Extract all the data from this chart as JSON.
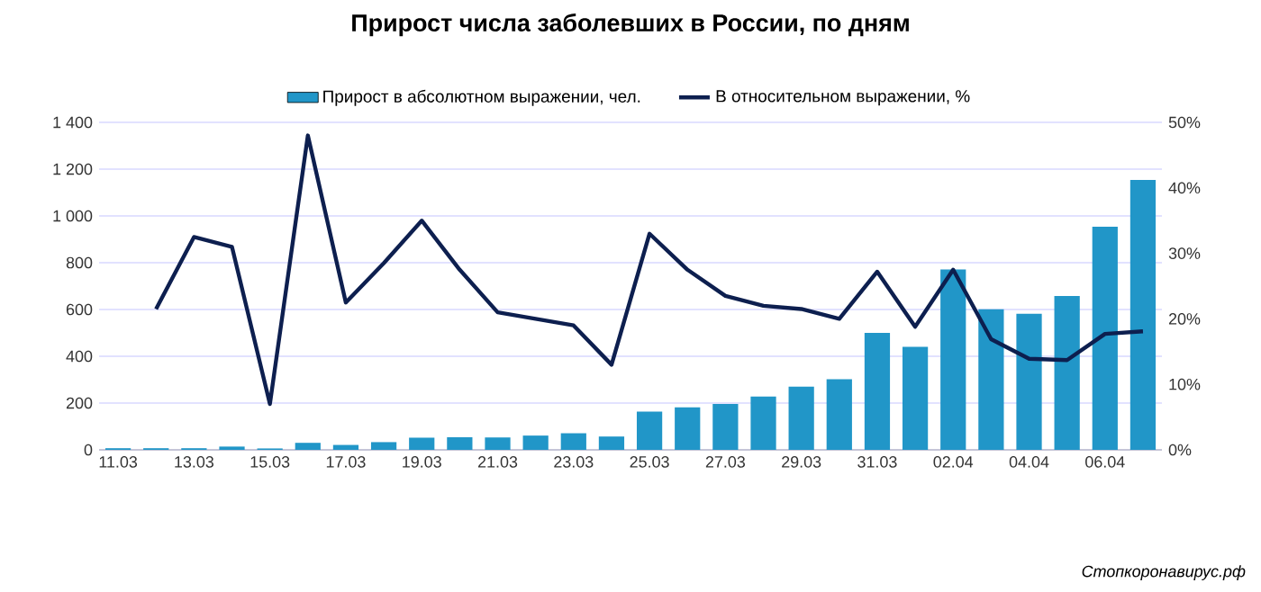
{
  "chart_data": {
    "type": "bar",
    "title": "Прирост числа заболевших в России, по дням",
    "categories": [
      "11.03",
      null,
      "13.03",
      null,
      "15.03",
      null,
      "17.03",
      null,
      "19.03",
      null,
      "21.03",
      null,
      "23.03",
      null,
      "25.03",
      null,
      "27.03",
      null,
      "29.03",
      null,
      "31.03",
      null,
      "02.04",
      null,
      "04.04",
      null,
      "06.04",
      null
    ],
    "series": [
      {
        "name": "Прирост в абсолютном выражении, чел.",
        "color": "#2196c8",
        "values": [
          7,
          7,
          7,
          14,
          6,
          30,
          21,
          33,
          52,
          54,
          53,
          61,
          71,
          57,
          163,
          182,
          196,
          228,
          270,
          302,
          500,
          440,
          771,
          601,
          582,
          658,
          954,
          1154
        ]
      },
      {
        "name": "В относительном выражении, %",
        "type": "line",
        "axis": "y2",
        "color": "#0d1f4f",
        "values": [
          null,
          21.5,
          32.5,
          31,
          7,
          48,
          22.5,
          28.5,
          35,
          27.5,
          21,
          20,
          19,
          13,
          33,
          27.5,
          23.5,
          22,
          21.5,
          20,
          27.2,
          18.8,
          27.5,
          16.9,
          13.9,
          13.7,
          17.7,
          18.1
        ]
      }
    ],
    "ylim": [
      0,
      1400
    ],
    "yticks": [
      0,
      200,
      400,
      600,
      800,
      {
        "value": 1000,
        "label": "1 000"
      },
      {
        "value": 1200,
        "label": "1 200"
      },
      {
        "value": 1400,
        "label": "1 400"
      }
    ],
    "y2lim": [
      0,
      50
    ],
    "y2ticks": [
      {
        "value": 0,
        "label": "0%"
      },
      {
        "value": 10,
        "label": "10%"
      },
      {
        "value": 20,
        "label": "20%"
      },
      {
        "value": 30,
        "label": "30%"
      },
      {
        "value": 40,
        "label": "40%"
      },
      {
        "value": 50,
        "label": "50%"
      }
    ],
    "grid": "y",
    "legend": "top",
    "annotations": [
      "Стопкоронавирус.рф"
    ]
  }
}
